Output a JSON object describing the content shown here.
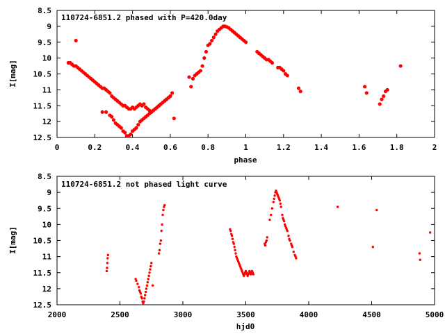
{
  "chart_data": [
    {
      "type": "scatter",
      "title": "110724-6851.2 phased with P=420.0day",
      "xlabel": "phase",
      "ylabel": "I[mag]",
      "xlim": [
        0,
        2
      ],
      "ylim": [
        12.5,
        8.5
      ],
      "y_inverted": true,
      "xticks": [
        "0",
        "0.2",
        "0.4",
        "0.6",
        "0.8",
        "1",
        "1.2",
        "1.4",
        "1.6",
        "1.8",
        "2"
      ],
      "yticks": [
        "8.5",
        "9",
        "9.5",
        "10",
        "10.5",
        "11",
        "11.5",
        "12",
        "12.5"
      ],
      "grid": false,
      "color": "#ff0000",
      "series": [
        {
          "x": [
            0.06,
            0.07,
            0.08,
            0.09,
            0.1,
            0.11,
            0.12,
            0.13,
            0.14,
            0.15,
            0.16,
            0.17,
            0.18,
            0.19,
            0.2,
            0.21,
            0.22,
            0.23,
            0.24,
            0.25,
            0.26,
            0.27,
            0.28,
            0.29,
            0.3,
            0.31,
            0.32,
            0.33,
            0.34,
            0.35,
            0.36,
            0.37,
            0.38,
            0.39,
            0.4,
            0.41,
            0.42,
            0.43,
            0.44,
            0.45,
            0.46,
            0.47,
            0.48,
            0.49,
            0.5,
            0.51,
            0.52,
            0.53,
            0.54,
            0.55,
            0.56,
            0.57,
            0.58,
            0.59,
            0.6,
            0.61,
            0.1,
            0.24,
            0.26,
            0.28,
            0.29,
            0.3,
            0.31,
            0.32,
            0.33,
            0.34,
            0.35,
            0.36,
            0.37,
            0.38,
            0.39,
            0.4,
            0.41,
            0.42,
            0.43,
            0.44,
            0.45,
            0.46,
            0.47,
            0.48,
            0.49,
            0.5,
            0.51,
            0.52,
            0.53,
            0.54,
            0.55,
            0.56,
            0.57,
            0.58,
            0.59,
            0.6,
            0.62,
            0.7,
            0.71,
            0.72,
            0.73,
            0.74,
            0.75,
            0.76,
            0.77,
            0.78,
            0.79,
            0.8,
            0.81,
            0.82,
            0.83,
            0.84,
            0.85,
            0.86,
            0.87,
            0.88,
            0.89,
            0.9,
            0.91,
            0.92,
            0.93,
            0.94,
            0.95,
            0.96,
            0.97,
            0.98,
            0.99,
            1.0,
            1.06,
            1.07,
            1.08,
            1.09,
            1.1,
            1.11,
            1.12,
            1.13,
            1.14,
            1.17,
            1.18,
            1.19,
            1.2,
            1.21,
            1.22,
            1.28,
            1.29,
            1.63,
            1.64,
            1.71,
            1.72,
            1.73,
            1.74,
            1.75,
            1.82
          ],
          "y": [
            10.15,
            10.15,
            10.2,
            10.25,
            10.25,
            10.3,
            10.35,
            10.4,
            10.45,
            10.5,
            10.55,
            10.6,
            10.65,
            10.7,
            10.75,
            10.8,
            10.85,
            10.9,
            10.95,
            10.95,
            11.0,
            11.05,
            11.1,
            11.2,
            11.25,
            11.3,
            11.35,
            11.4,
            11.45,
            11.5,
            11.5,
            11.55,
            11.6,
            11.6,
            11.55,
            11.6,
            11.55,
            11.5,
            11.45,
            11.5,
            11.45,
            11.55,
            11.6,
            11.65,
            11.7,
            11.65,
            11.6,
            11.55,
            11.5,
            11.45,
            11.4,
            11.35,
            11.3,
            11.25,
            11.2,
            11.1,
            9.45,
            11.7,
            11.7,
            11.8,
            11.85,
            11.95,
            12.05,
            12.1,
            12.15,
            12.2,
            12.3,
            12.35,
            12.45,
            12.45,
            12.4,
            12.3,
            12.25,
            12.2,
            12.1,
            12.0,
            11.95,
            11.9,
            11.85,
            11.8,
            11.75,
            11.7,
            11.65,
            11.6,
            11.55,
            11.5,
            11.45,
            11.4,
            11.35,
            11.3,
            11.25,
            11.2,
            11.9,
            10.6,
            10.9,
            10.65,
            10.55,
            10.5,
            10.45,
            10.4,
            10.25,
            10.0,
            9.8,
            9.6,
            9.55,
            9.45,
            9.35,
            9.25,
            9.15,
            9.1,
            9.05,
            9.0,
            9.0,
            9.02,
            9.05,
            9.1,
            9.15,
            9.2,
            9.25,
            9.3,
            9.35,
            9.4,
            9.45,
            9.5,
            9.8,
            9.85,
            9.9,
            9.95,
            10.0,
            10.05,
            10.05,
            10.1,
            10.15,
            10.3,
            10.3,
            10.35,
            10.4,
            10.5,
            10.55,
            10.95,
            11.05,
            10.9,
            11.1,
            11.45,
            11.3,
            11.2,
            11.05,
            11.0,
            10.25
          ]
        }
      ]
    },
    {
      "type": "scatter",
      "title": "110724-6851.2 not phased light curve",
      "xlabel": "hjd0",
      "ylabel": "I[mag]",
      "xlim": [
        2000,
        5000
      ],
      "ylim": [
        12.5,
        8.5
      ],
      "y_inverted": true,
      "xticks": [
        "2000",
        "2500",
        "3000",
        "3500",
        "4000",
        "4500",
        "5000"
      ],
      "yticks": [
        "8.5",
        "9",
        "9.5",
        "10",
        "10.5",
        "11",
        "11.5",
        "12",
        "12.5"
      ],
      "grid": false,
      "color": "#ff0000",
      "series": [
        {
          "x": [
            2395,
            2398,
            2400,
            2402,
            2405,
            2625,
            2630,
            2640,
            2650,
            2655,
            2660,
            2665,
            2670,
            2675,
            2680,
            2685,
            2690,
            2695,
            2700,
            2705,
            2710,
            2715,
            2720,
            2725,
            2730,
            2735,
            2740,
            2745,
            2750,
            2760,
            2810,
            2815,
            2820,
            2825,
            2830,
            2835,
            2840,
            2845,
            2850,
            2855,
            3375,
            3380,
            3385,
            3390,
            3395,
            3400,
            3405,
            3410,
            3415,
            3420,
            3425,
            3430,
            3435,
            3440,
            3445,
            3450,
            3455,
            3460,
            3465,
            3470,
            3475,
            3480,
            3485,
            3490,
            3495,
            3500,
            3505,
            3510,
            3515,
            3520,
            3525,
            3530,
            3535,
            3540,
            3545,
            3550,
            3555,
            3560,
            3650,
            3655,
            3660,
            3665,
            3670,
            3690,
            3700,
            3710,
            3720,
            3725,
            3730,
            3735,
            3740,
            3745,
            3750,
            3755,
            3760,
            3765,
            3770,
            3775,
            3780,
            3790,
            3795,
            3800,
            3805,
            3810,
            3815,
            3820,
            3825,
            3830,
            3840,
            3845,
            3850,
            3860,
            3865,
            3870,
            3880,
            3890,
            3895,
            3900,
            4230,
            4510,
            4540,
            4880,
            4885,
            4965
          ],
          "y": [
            11.45,
            11.35,
            11.2,
            11.05,
            10.95,
            11.7,
            11.75,
            11.85,
            11.95,
            12.05,
            12.1,
            12.15,
            12.25,
            12.3,
            12.4,
            12.45,
            12.4,
            12.3,
            12.2,
            12.1,
            12.0,
            11.9,
            11.8,
            11.7,
            11.6,
            11.5,
            11.4,
            11.3,
            11.2,
            11.9,
            10.9,
            10.8,
            10.6,
            10.5,
            10.2,
            10.0,
            9.7,
            9.55,
            9.45,
            9.4,
            10.15,
            10.2,
            10.3,
            10.35,
            10.45,
            10.55,
            10.6,
            10.7,
            10.8,
            10.9,
            11.0,
            11.05,
            11.1,
            11.15,
            11.2,
            11.25,
            11.3,
            11.35,
            11.4,
            11.45,
            11.5,
            11.55,
            11.6,
            11.55,
            11.5,
            11.45,
            11.5,
            11.55,
            11.6,
            11.55,
            11.5,
            11.45,
            11.5,
            11.55,
            11.5,
            11.45,
            11.5,
            11.55,
            10.6,
            10.65,
            10.55,
            10.5,
            10.4,
            9.85,
            9.7,
            9.5,
            9.3,
            9.2,
            9.1,
            9.0,
            8.95,
            9.0,
            9.05,
            9.1,
            9.15,
            9.2,
            9.25,
            9.35,
            9.45,
            9.7,
            9.8,
            9.85,
            9.9,
            10.0,
            10.05,
            10.1,
            10.15,
            10.2,
            10.35,
            10.45,
            10.5,
            10.6,
            10.65,
            10.7,
            10.85,
            10.95,
            11.0,
            11.05,
            9.45,
            10.7,
            9.55,
            10.9,
            11.1,
            10.25
          ]
        }
      ]
    }
  ]
}
